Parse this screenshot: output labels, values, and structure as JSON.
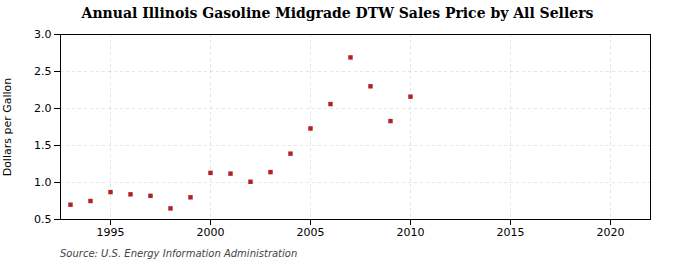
{
  "chart_data": {
    "type": "scatter",
    "title": "Annual Illinois Gasoline Midgrade DTW Sales Price by All Sellers",
    "ylabel": "Dollars per Gallon",
    "source": "Source: U.S. Energy Information Administration",
    "x": [
      1993,
      1994,
      1995,
      1996,
      1997,
      1998,
      1999,
      2000,
      2001,
      2002,
      2003,
      2004,
      2005,
      2006,
      2007,
      2008,
      2009,
      2010
    ],
    "values": [
      0.7,
      0.75,
      0.87,
      0.84,
      0.82,
      0.65,
      0.8,
      1.13,
      1.12,
      1.01,
      1.14,
      1.39,
      1.73,
      2.06,
      2.69,
      2.3,
      1.83,
      2.16
    ],
    "color": "#b22222",
    "marker": "square",
    "xlim": [
      1992.5,
      2022
    ],
    "ylim": [
      0.5,
      3.0
    ],
    "xticks": [
      1995,
      2000,
      2005,
      2010,
      2015,
      2020
    ],
    "yticks": [
      0.5,
      {
        "value": 1.0,
        "label": "1.0"
      },
      1.5,
      {
        "value": 2.0,
        "label": "2.0"
      },
      2.5,
      {
        "value": 3.0,
        "label": "3.0"
      }
    ],
    "grid": true
  }
}
